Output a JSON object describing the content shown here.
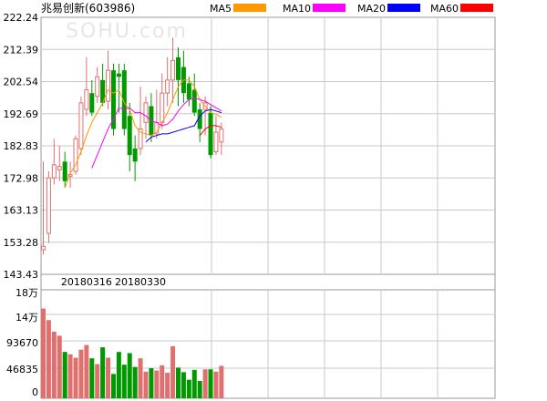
{
  "chart_data": {
    "type": "candlestick",
    "title": "兆易创新(603986)",
    "watermark": "SOHU.com",
    "legend": [
      {
        "name": "MA5",
        "color": "#ff9900"
      },
      {
        "name": "MA10",
        "color": "#ff00ff"
      },
      {
        "name": "MA20",
        "color": "#0000ff"
      },
      {
        "name": "MA60",
        "color": "#ff0000"
      }
    ],
    "price_axis": {
      "ticks": [
        "222.24",
        "212.39",
        "202.54",
        "192.69",
        "182.83",
        "172.98",
        "163.13",
        "153.28",
        "143.43"
      ],
      "min": 143.43,
      "max": 222.24
    },
    "date_labels": [
      {
        "text": "20180316",
        "index": 8
      },
      {
        "text": "20180330",
        "index": 18
      }
    ],
    "volume_axis": {
      "ticks": [
        "18万",
        "14万",
        "93670",
        "46835",
        "0"
      ],
      "max": 187340
    },
    "up_color": "#e07070",
    "down_color": "#009900",
    "candles": [
      {
        "o": 151.0,
        "h": 178.0,
        "l": 149.5,
        "c": 152.0,
        "v": 155000
      },
      {
        "o": 156.0,
        "h": 175.0,
        "l": 153.0,
        "c": 173.0,
        "v": 135000
      },
      {
        "o": 173.0,
        "h": 185.0,
        "l": 171.0,
        "c": 177.0,
        "v": 115000
      },
      {
        "o": 175.5,
        "h": 183.0,
        "l": 172.0,
        "c": 176.5,
        "v": 108000
      },
      {
        "o": 178.0,
        "h": 181.0,
        "l": 170.0,
        "c": 172.0,
        "v": 80000
      },
      {
        "o": 173.5,
        "h": 178.0,
        "l": 170.0,
        "c": 174.0,
        "v": 76000
      },
      {
        "o": 175.0,
        "h": 186.0,
        "l": 174.0,
        "c": 185.0,
        "v": 70000
      },
      {
        "o": 182.0,
        "h": 198.0,
        "l": 180.0,
        "c": 196.0,
        "v": 84000
      },
      {
        "o": 194.0,
        "h": 210.0,
        "l": 192.0,
        "c": 200.0,
        "v": 92000
      },
      {
        "o": 199.0,
        "h": 203.0,
        "l": 192.0,
        "c": 193.0,
        "v": 69000
      },
      {
        "o": 198.0,
        "h": 207.0,
        "l": 196.0,
        "c": 204.0,
        "v": 59000
      },
      {
        "o": 203.0,
        "h": 208.0,
        "l": 195.0,
        "c": 196.0,
        "v": 88000
      },
      {
        "o": 196.5,
        "h": 212.0,
        "l": 194.0,
        "c": 206.0,
        "v": 70000
      },
      {
        "o": 206.0,
        "h": 208.0,
        "l": 186.0,
        "c": 188.0,
        "v": 42000
      },
      {
        "o": 205.0,
        "h": 208.0,
        "l": 193.0,
        "c": 204.0,
        "v": 80000
      },
      {
        "o": 206.0,
        "h": 208.0,
        "l": 186.0,
        "c": 188.0,
        "v": 58000
      },
      {
        "o": 192.0,
        "h": 196.0,
        "l": 175.0,
        "c": 180.0,
        "v": 78000
      },
      {
        "o": 182.0,
        "h": 186.0,
        "l": 172.0,
        "c": 178.0,
        "v": 54000
      },
      {
        "o": 182.0,
        "h": 201.0,
        "l": 180.0,
        "c": 188.0,
        "v": 69000
      },
      {
        "o": 190.0,
        "h": 198.0,
        "l": 185.0,
        "c": 196.0,
        "v": 46000
      },
      {
        "o": 195.0,
        "h": 199.0,
        "l": 184.0,
        "c": 186.0,
        "v": 52000
      },
      {
        "o": 186.5,
        "h": 200.0,
        "l": 185.0,
        "c": 190.0,
        "v": 48000
      },
      {
        "o": 190.0,
        "h": 205.0,
        "l": 188.0,
        "c": 199.0,
        "v": 57000
      },
      {
        "o": 199.0,
        "h": 210.0,
        "l": 195.0,
        "c": 203.0,
        "v": 44000
      },
      {
        "o": 203.0,
        "h": 216.0,
        "l": 196.0,
        "c": 209.0,
        "v": 90000
      },
      {
        "o": 210.0,
        "h": 213.0,
        "l": 195.0,
        "c": 203.0,
        "v": 53000
      },
      {
        "o": 207.0,
        "h": 212.0,
        "l": 196.0,
        "c": 199.0,
        "v": 45000
      },
      {
        "o": 202.0,
        "h": 204.0,
        "l": 195.0,
        "c": 197.0,
        "v": 32000
      },
      {
        "o": 200.0,
        "h": 205.0,
        "l": 192.0,
        "c": 193.0,
        "v": 49000
      },
      {
        "o": 194.0,
        "h": 196.0,
        "l": 184.0,
        "c": 188.0,
        "v": 30000
      },
      {
        "o": 194.0,
        "h": 198.0,
        "l": 186.0,
        "c": 196.0,
        "v": 50000
      },
      {
        "o": 193.0,
        "h": 195.0,
        "l": 179.0,
        "c": 180.0,
        "v": 50000
      },
      {
        "o": 181.0,
        "h": 192.0,
        "l": 180.0,
        "c": 187.0,
        "v": 46000
      },
      {
        "o": 184.0,
        "h": 190.0,
        "l": 180.0,
        "c": 188.0,
        "v": 56000
      }
    ],
    "ma": {
      "MA5": [
        null,
        null,
        null,
        null,
        170.0,
        174.5,
        177.0,
        181.0,
        186.0,
        190.0,
        193.0,
        196.0,
        200.0,
        199.0,
        200.0,
        196.0,
        194.0,
        189.0,
        187.0,
        186.5,
        186.0,
        187.0,
        190.0,
        193.0,
        197.0,
        201.0,
        203.0,
        203.0,
        201.0,
        197.0,
        195.0,
        193.0,
        192.5,
        191.5
      ],
      "MA10": [
        null,
        null,
        null,
        null,
        null,
        null,
        null,
        null,
        null,
        176.0,
        180.0,
        184.0,
        188.0,
        191.0,
        194.5,
        194.0,
        194.5,
        193.0,
        193.0,
        192.0,
        190.5,
        190.0,
        189.0,
        189.5,
        191.0,
        193.5,
        195.5,
        197.0,
        197.5,
        197.0,
        196.5,
        195.5,
        194.5,
        193.5
      ],
      "MA20": [
        null,
        null,
        null,
        null,
        null,
        null,
        null,
        null,
        null,
        null,
        null,
        null,
        null,
        null,
        null,
        null,
        null,
        null,
        null,
        184.0,
        185.5,
        186.0,
        186.5,
        186.5,
        187.0,
        187.5,
        188.0,
        188.5,
        189.0,
        192.0,
        193.5,
        194.0,
        193.5,
        193.0
      ],
      "MA60": [
        null,
        null,
        null,
        null,
        null,
        null,
        null,
        null,
        null,
        null,
        null,
        null,
        null,
        null,
        null,
        null,
        null,
        null,
        null,
        null,
        null,
        null,
        null,
        null,
        null,
        null,
        null,
        null,
        null,
        186.0,
        188.0,
        189.0,
        189.0,
        188.5
      ]
    }
  }
}
